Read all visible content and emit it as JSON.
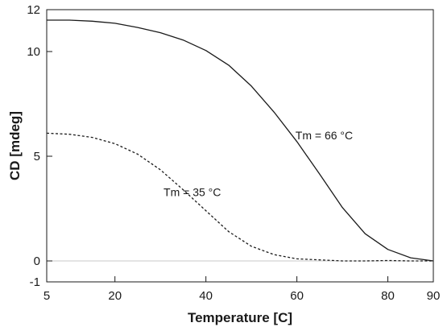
{
  "chart_data": {
    "type": "line",
    "title": "",
    "xlabel": "Temperature [C]",
    "ylabel": "CD [mdeg]",
    "xlim": [
      5,
      90
    ],
    "ylim": [
      -1,
      12
    ],
    "x_ticks": [
      5,
      20,
      40,
      60,
      80,
      90
    ],
    "y_ticks": [
      -1,
      0,
      5,
      10,
      12
    ],
    "grid": false,
    "legend": "none",
    "baseline": {
      "y": 0,
      "color": "#c8c8c8"
    },
    "series": [
      {
        "style": "solid",
        "color": "#1a1a1a",
        "points": [
          [
            5,
            11.5
          ],
          [
            10,
            11.5
          ],
          [
            15,
            11.45
          ],
          [
            20,
            11.35
          ],
          [
            25,
            11.15
          ],
          [
            30,
            10.9
          ],
          [
            35,
            10.55
          ],
          [
            40,
            10.05
          ],
          [
            45,
            9.35
          ],
          [
            50,
            8.35
          ],
          [
            55,
            7.1
          ],
          [
            60,
            5.7
          ],
          [
            65,
            4.15
          ],
          [
            70,
            2.55
          ],
          [
            75,
            1.3
          ],
          [
            80,
            0.55
          ],
          [
            85,
            0.15
          ],
          [
            90,
            0.0
          ]
        ]
      },
      {
        "style": "dashed",
        "color": "#1a1a1a",
        "points": [
          [
            5,
            6.1
          ],
          [
            10,
            6.05
          ],
          [
            15,
            5.9
          ],
          [
            20,
            5.6
          ],
          [
            25,
            5.1
          ],
          [
            30,
            4.35
          ],
          [
            35,
            3.4
          ],
          [
            40,
            2.4
          ],
          [
            45,
            1.4
          ],
          [
            50,
            0.7
          ],
          [
            55,
            0.3
          ],
          [
            60,
            0.1
          ],
          [
            65,
            0.05
          ],
          [
            70,
            0.0
          ],
          [
            75,
            0.0
          ],
          [
            80,
            0.02
          ],
          [
            85,
            0.0
          ],
          [
            90,
            0.0
          ]
        ]
      }
    ],
    "annotations": [
      {
        "text": "Tm = 66 °C",
        "x": 66,
        "y": 5.8
      },
      {
        "text": "Tm = 35 °C",
        "x": 37,
        "y": 3.1
      }
    ]
  }
}
